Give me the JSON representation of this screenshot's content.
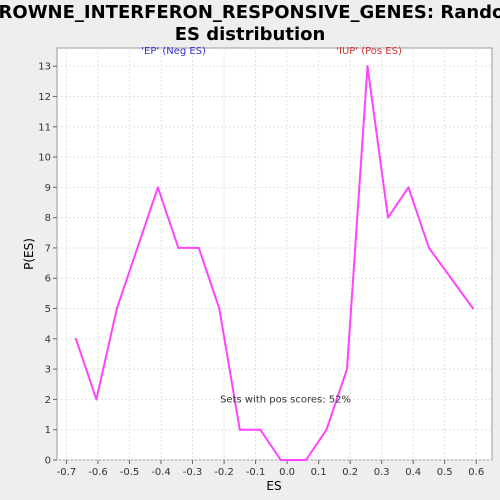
{
  "chart_data": {
    "type": "line",
    "title_lines": [
      "BROWNE_INTERFERON_RESPONSIVE_GENES: Random",
      "ES distribution"
    ],
    "xlabel": "ES",
    "ylabel": "P(ES)",
    "xlim": [
      -0.73,
      0.65
    ],
    "ylim": [
      0,
      13.6
    ],
    "x_ticks": [
      -0.7,
      -0.6,
      -0.5,
      -0.4,
      -0.3,
      -0.2,
      -0.1,
      0.0,
      0.1,
      0.2,
      0.3,
      0.4,
      0.5,
      0.6
    ],
    "x_tick_labels": [
      "-0.7",
      "-0.6",
      "-0.5",
      "-0.4",
      "-0.3",
      "-0.2",
      "-0.1",
      "0.0",
      "0.1",
      "0.2",
      "0.3",
      "0.4",
      "0.5",
      "0.6"
    ],
    "y_ticks": [
      0,
      1,
      2,
      3,
      4,
      5,
      6,
      7,
      8,
      9,
      10,
      11,
      12,
      13
    ],
    "y_tick_labels": [
      "0",
      "1",
      "2",
      "3",
      "4",
      "5",
      "6",
      "7",
      "8",
      "9",
      "10",
      "11",
      "12",
      "13"
    ],
    "grid": true,
    "series": [
      {
        "color": "#ff44ff",
        "x": [
          -0.67,
          -0.605,
          -0.54,
          -0.475,
          -0.41,
          -0.345,
          -0.28,
          -0.215,
          -0.15,
          -0.085,
          -0.02,
          0.06,
          0.125,
          0.19,
          0.255,
          0.32,
          0.385,
          0.45,
          0.52,
          0.59
        ],
        "y": [
          4,
          2,
          5,
          7,
          9,
          7,
          7,
          5,
          1,
          1,
          0,
          0,
          1,
          3,
          13,
          8,
          9,
          7,
          6,
          5
        ]
      }
    ],
    "annotations": [
      {
        "text": "'EP' (Neg ES)",
        "x": -0.36,
        "y": 13.4,
        "color": "#3333cc"
      },
      {
        "text": "'IUP' (Pos ES)",
        "x": 0.26,
        "y": 13.4,
        "color": "#cc3333"
      },
      {
        "text": "Sets with pos scores: 52%",
        "x": -0.005,
        "y": 1.9,
        "color": "#333333"
      }
    ]
  }
}
